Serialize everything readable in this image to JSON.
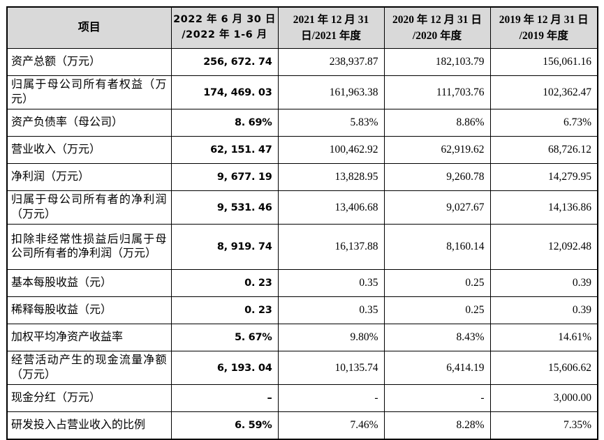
{
  "table": {
    "columns": [
      {
        "lines": [
          "项目"
        ]
      },
      {
        "lines": [
          "2022 年 6 月 30 日",
          "/2022 年 1-6 月"
        ]
      },
      {
        "lines": [
          "2021 年 12 月 31",
          "日/2021 年度"
        ]
      },
      {
        "lines": [
          "2020 年 12 月 31 日",
          "/2020 年度"
        ]
      },
      {
        "lines": [
          "2019 年 12 月 31 日",
          "/2019 年度"
        ]
      }
    ],
    "rows": [
      {
        "item": "资产总额（万元）",
        "lines": 1,
        "values": [
          "256, 672. 74",
          "238,937.87",
          "182,103.79",
          "156,061.16"
        ]
      },
      {
        "item": "归属于母公司所有者权益（万元）",
        "lines": 2,
        "values": [
          "174, 469. 03",
          "161,963.38",
          "111,703.76",
          "102,362.47"
        ]
      },
      {
        "item": "资产负债率（母公司）",
        "lines": 1,
        "values": [
          "8. 69%",
          "5.83%",
          "8.86%",
          "6.73%"
        ]
      },
      {
        "item": "营业收入（万元）",
        "lines": 1,
        "values": [
          "62, 151. 47",
          "100,462.92",
          "62,919.62",
          "68,726.12"
        ]
      },
      {
        "item": "净利润（万元）",
        "lines": 1,
        "values": [
          "9, 677. 19",
          "13,828.95",
          "9,260.78",
          "14,279.95"
        ]
      },
      {
        "item": "归属于母公司所有者的净利润（万元）",
        "lines": 2,
        "values": [
          "9, 531. 46",
          "13,406.68",
          "9,027.67",
          "14,136.86"
        ]
      },
      {
        "item": "扣除非经常性损益后归属于母公司所有者的净利润（万元）",
        "lines": 3,
        "values": [
          "8, 919. 74",
          "16,137.88",
          "8,160.14",
          "12,092.48"
        ]
      },
      {
        "item": "基本每股收益（元）",
        "lines": 1,
        "values": [
          "0. 23",
          "0.35",
          "0.25",
          "0.39"
        ]
      },
      {
        "item": "稀释每股收益（元）",
        "lines": 1,
        "values": [
          "0. 23",
          "0.35",
          "0.25",
          "0.39"
        ]
      },
      {
        "item": "加权平均净资产收益率",
        "lines": 1,
        "values": [
          "5. 67%",
          "9.80%",
          "8.43%",
          "14.61%"
        ]
      },
      {
        "item": "经营活动产生的现金流量净额（万元）",
        "lines": 2,
        "values": [
          "6, 193. 04",
          "10,135.74",
          "6,414.19",
          "15,606.62"
        ]
      },
      {
        "item": "现金分红（万元）",
        "lines": 1,
        "values": [
          "–",
          "-",
          "-",
          "3,000.00"
        ]
      },
      {
        "item": "研发投入占营业收入的比例",
        "lines": 1,
        "values": [
          "6. 59%",
          "7.46%",
          "8.28%",
          "7.35%"
        ]
      }
    ],
    "style": {
      "header_bg": "#d9d9d9",
      "border_color": "#000000",
      "text_color": "#000000"
    }
  }
}
